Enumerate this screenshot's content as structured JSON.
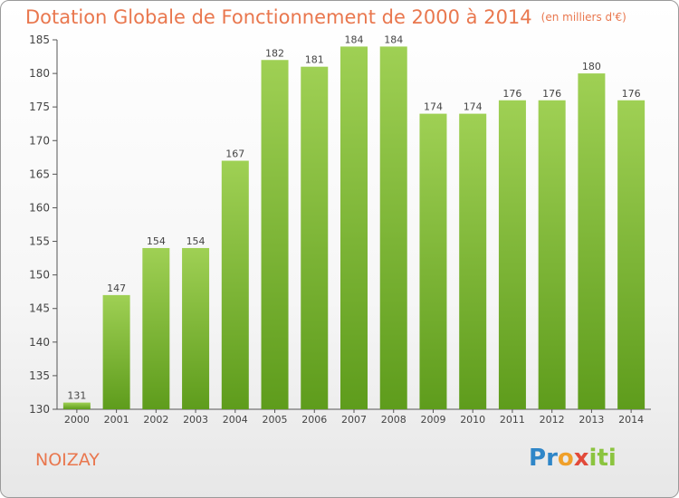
{
  "header": {
    "title": "Dotation Globale de Fonctionnement de 2000 à 2014",
    "unit": "(en milliers d'€)"
  },
  "footer": {
    "commune": "NOIZAY",
    "logo_letters": [
      "P",
      "r",
      "o",
      "x",
      "i",
      "ti"
    ]
  },
  "colors": {
    "title": "#e9774e",
    "bar_top": "#9fd054",
    "bar_bottom": "#5e9c1c",
    "axis": "#555555"
  },
  "chart_data": {
    "type": "bar",
    "categories": [
      "2000",
      "2001",
      "2002",
      "2003",
      "2004",
      "2005",
      "2006",
      "2007",
      "2008",
      "2009",
      "2010",
      "2011",
      "2012",
      "2013",
      "2014"
    ],
    "values": [
      131,
      147,
      154,
      154,
      167,
      182,
      181,
      184,
      184,
      174,
      174,
      176,
      176,
      180,
      176
    ],
    "ylim": [
      130,
      185
    ],
    "yticks": [
      130,
      135,
      140,
      145,
      150,
      155,
      160,
      165,
      170,
      175,
      180,
      185
    ],
    "grid": false,
    "legend": false
  }
}
